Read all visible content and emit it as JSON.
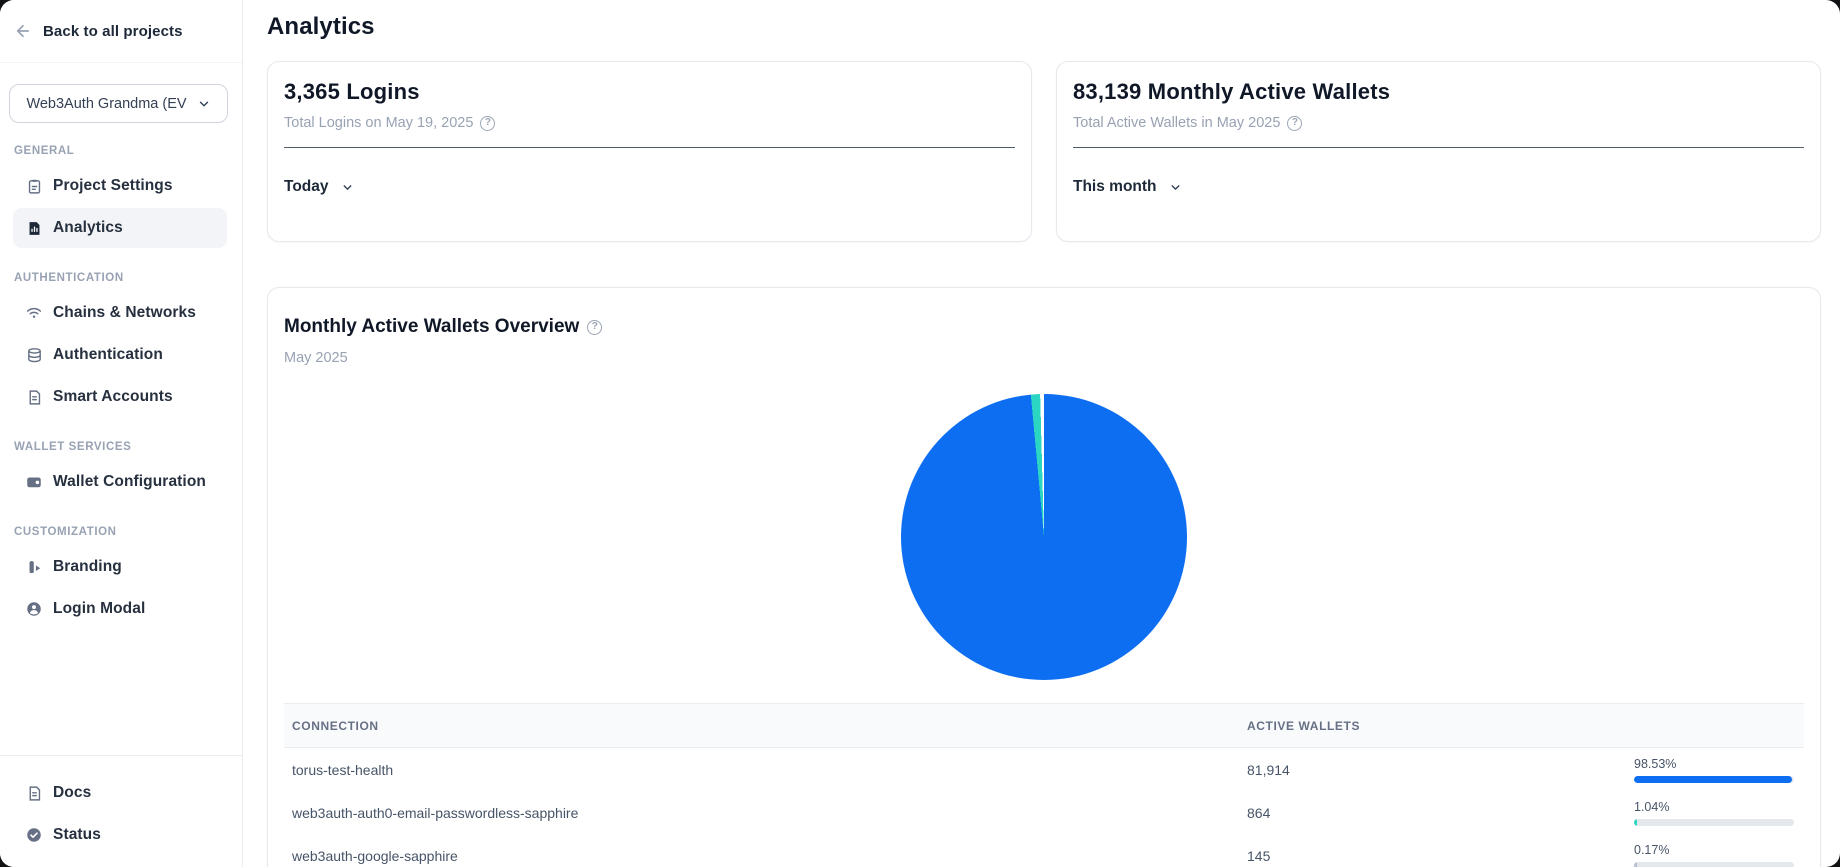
{
  "sidebar": {
    "back_label": "Back to all projects",
    "project_selector": {
      "value": "Web3Auth Grandma (EV"
    },
    "sections": [
      {
        "label": "GENERAL",
        "items": [
          {
            "label": "Project Settings",
            "icon": "clipboard-icon",
            "active": false
          },
          {
            "label": "Analytics",
            "icon": "analytics-doc-icon",
            "active": true
          }
        ]
      },
      {
        "label": "AUTHENTICATION",
        "items": [
          {
            "label": "Chains & Networks",
            "icon": "network-wifi-icon",
            "active": false
          },
          {
            "label": "Authentication",
            "icon": "database-icon",
            "active": false
          },
          {
            "label": "Smart Accounts",
            "icon": "document-icon",
            "active": false
          }
        ]
      },
      {
        "label": "WALLET SERVICES",
        "items": [
          {
            "label": "Wallet Configuration",
            "icon": "wallet-icon",
            "active": false
          }
        ]
      },
      {
        "label": "CUSTOMIZATION",
        "items": [
          {
            "label": "Branding",
            "icon": "branding-icon",
            "active": false
          },
          {
            "label": "Login Modal",
            "icon": "user-circle-icon",
            "active": false
          }
        ]
      }
    ],
    "footer_items": [
      {
        "label": "Docs",
        "icon": "document-icon"
      },
      {
        "label": "Status",
        "icon": "check-circle-icon"
      }
    ]
  },
  "header": {
    "title": "Analytics"
  },
  "stat_cards": [
    {
      "value_title": "3,365 Logins",
      "subtitle": "Total Logins on May 19, 2025",
      "range_label": "Today"
    },
    {
      "value_title": "83,139 Monthly Active Wallets",
      "subtitle": "Total Active Wallets in May 2025",
      "range_label": "This month"
    }
  ],
  "overview": {
    "title": "Monthly Active Wallets Overview",
    "subtitle": "May 2025",
    "table": {
      "headers": {
        "connection": "CONNECTION",
        "active_wallets": "ACTIVE WALLETS",
        "share": ""
      },
      "rows": [
        {
          "connection": "torus-test-health",
          "active_wallets": "81,914",
          "pct_label": "98.53%",
          "pct_value": 98.53,
          "bar_color": "#0d6ef2"
        },
        {
          "connection": "web3auth-auth0-email-passwordless-sapphire",
          "active_wallets": "864",
          "pct_label": "1.04%",
          "pct_value": 1.04,
          "bar_color": "#2bd6c3"
        },
        {
          "connection": "web3auth-google-sapphire",
          "active_wallets": "145",
          "pct_label": "0.17%",
          "pct_value": 0.17,
          "bar_color": "#b9c2cf"
        }
      ]
    }
  },
  "chart_data": {
    "type": "pie",
    "title": "Monthly Active Wallets Overview",
    "period": "May 2025",
    "total_active_wallets": 83139,
    "slices": [
      {
        "label": "torus-test-health",
        "value": 81914,
        "pct": 98.53,
        "color": "#0d6ef2"
      },
      {
        "label": "web3auth-auth0-email-passwordless-sapphire",
        "value": 864,
        "pct": 1.04,
        "color": "#2bd6c3"
      },
      {
        "label": "web3auth-google-sapphire",
        "value": 145,
        "pct": 0.17,
        "color": "#ffffff"
      }
    ],
    "start_angle_deg": 0,
    "direction": "clockwise",
    "legend": false
  },
  "colors": {
    "accent_blue": "#0d6ef2",
    "accent_teal": "#2bd6c3",
    "track_gray": "#e4e7ec",
    "divider_dark": "#515c6b"
  }
}
